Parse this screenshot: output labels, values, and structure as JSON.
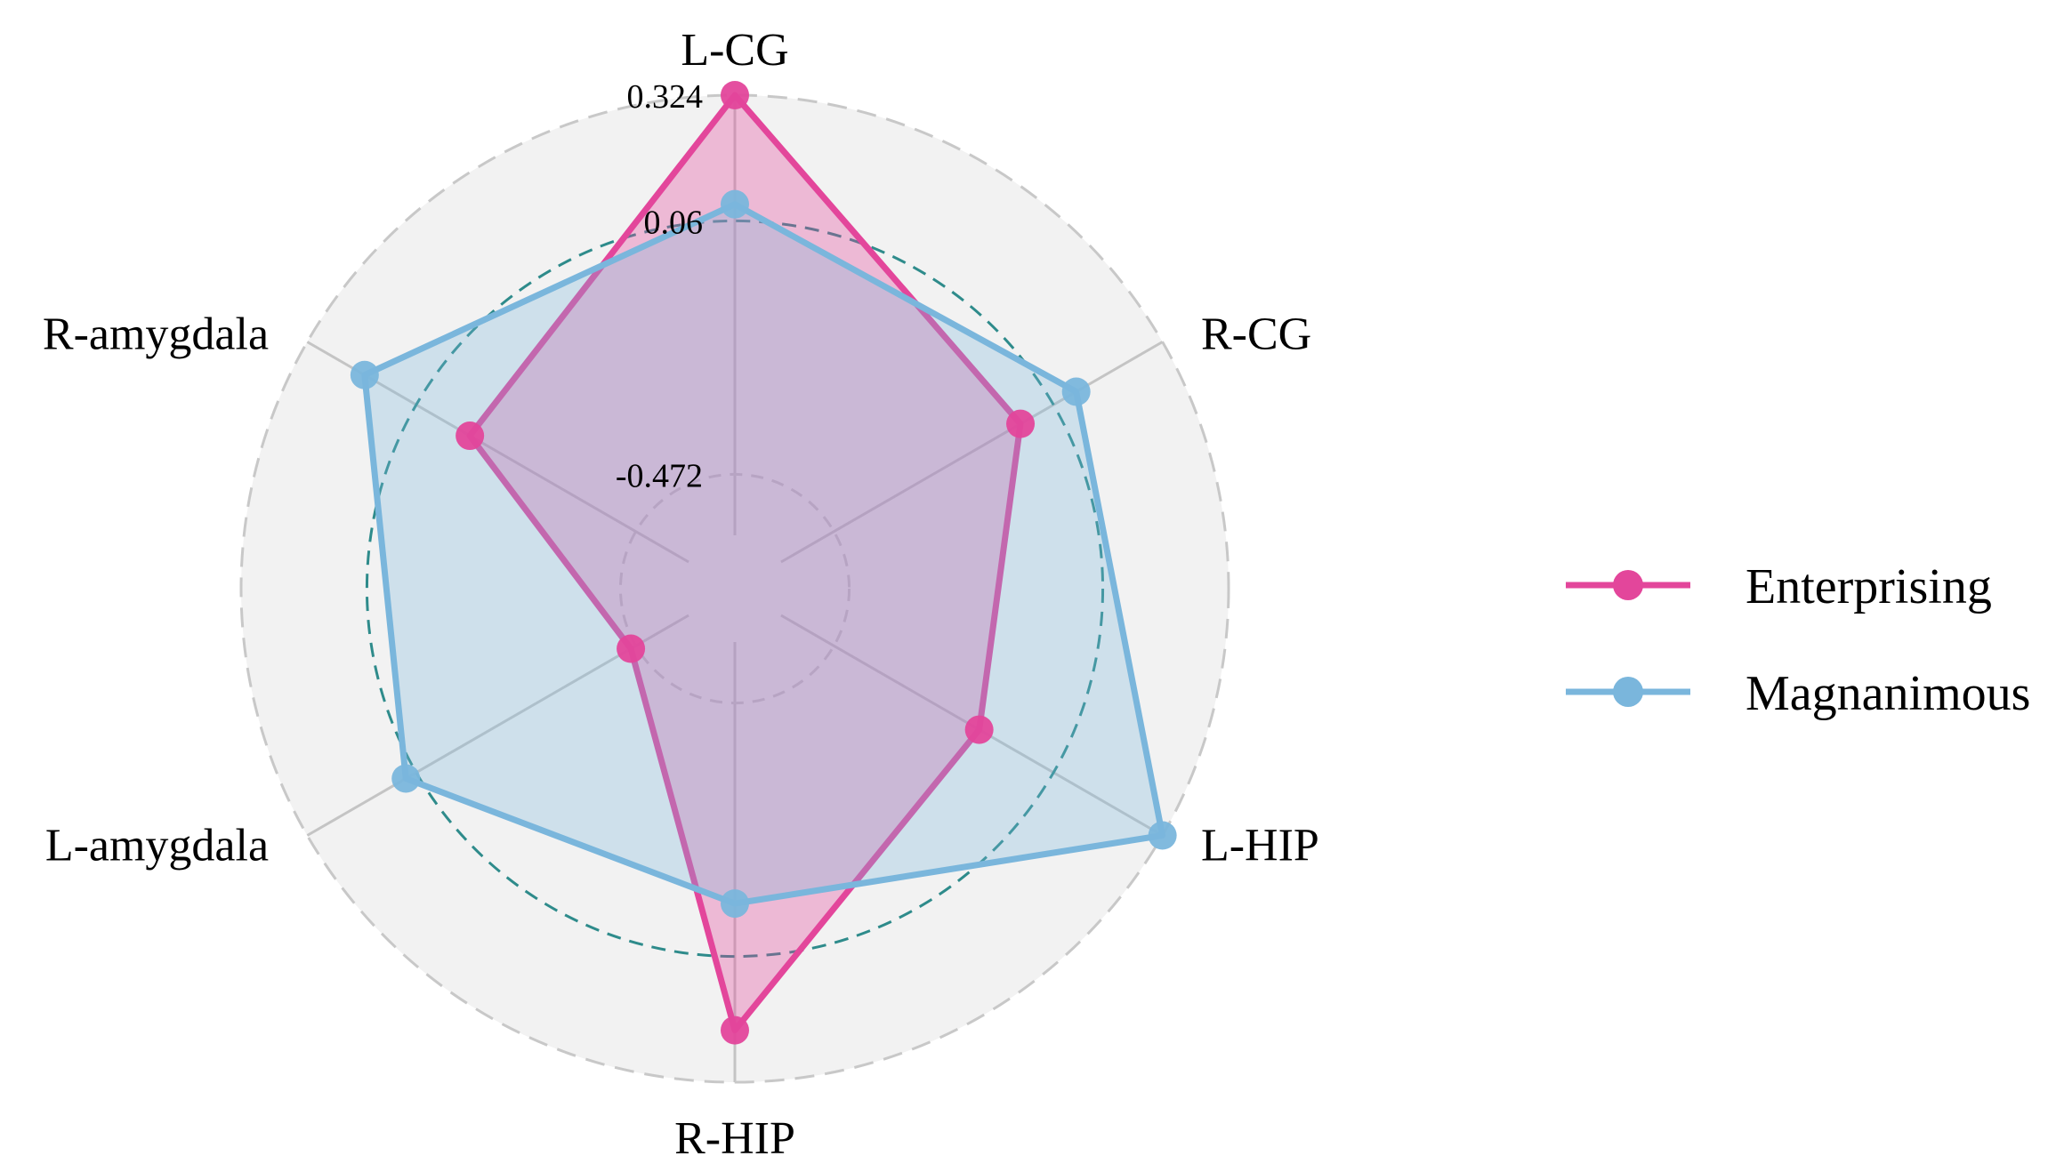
{
  "chart_data": {
    "type": "radar",
    "axes": [
      "L-CG",
      "R-CG",
      "L-HIP",
      "R-HIP",
      "L-amygdala",
      "R-amygdala"
    ],
    "range": [
      -0.6,
      0.324
    ],
    "ticks": [
      {
        "value": 0.324,
        "label": "0.324",
        "style": "outer"
      },
      {
        "value": 0.06,
        "label": "0.06",
        "style": "mid"
      },
      {
        "value": -0.472,
        "label": "-0.472",
        "style": "inner"
      }
    ],
    "series": [
      {
        "name": "Enterprising",
        "color": "#e3469b",
        "fill": "rgba(227,70,155,0.33)",
        "values": [
          0.324,
          -0.02,
          -0.12,
          0.215,
          -0.46,
          -0.07
        ]
      },
      {
        "name": "Magnanimous",
        "color": "#7ab6dc",
        "fill": "rgba(122,182,220,0.30)",
        "values": [
          0.095,
          0.115,
          0.324,
          -0.051,
          0.085,
          0.185
        ]
      }
    ],
    "legend": "right",
    "grid": true
  },
  "colors": {
    "background_disc": "#f2f2f2",
    "outer_ring": "#c8c8c8",
    "mid_ring": "#2e8b8b",
    "inner_ring": "#c8c8c8",
    "spoke": "#c4c4c4"
  }
}
